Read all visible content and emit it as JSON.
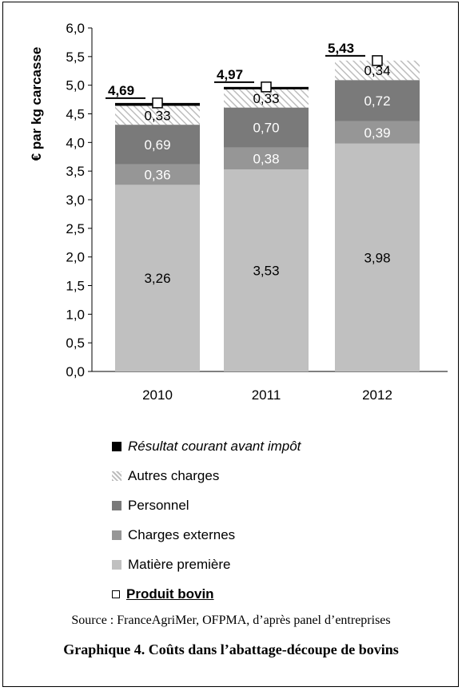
{
  "chart_data": {
    "type": "bar",
    "stacked": true,
    "ylabel": "€ par kg carcasse",
    "ylim": [
      0,
      6
    ],
    "yticks": [
      "0,0",
      "0,5",
      "1,0",
      "1,5",
      "2,0",
      "2,5",
      "3,0",
      "3,5",
      "4,0",
      "4,5",
      "5,0",
      "5,5",
      "6,0"
    ],
    "categories": [
      "2010",
      "2011",
      "2012"
    ],
    "series": [
      {
        "name": "Matière première",
        "values": [
          3.26,
          3.53,
          3.98
        ],
        "labels": [
          "3,26",
          "3,53",
          "3,98"
        ],
        "color": "#c0c0c0",
        "label_color": "#000000"
      },
      {
        "name": "Charges externes",
        "values": [
          0.36,
          0.38,
          0.39
        ],
        "labels": [
          "0,36",
          "0,38",
          "0,39"
        ],
        "color": "#969696",
        "label_color": "#ffffff"
      },
      {
        "name": "Personnel",
        "values": [
          0.69,
          0.7,
          0.72
        ],
        "labels": [
          "0,69",
          "0,70",
          "0,72"
        ],
        "color": "#7a7a7a",
        "label_color": "#ffffff"
      },
      {
        "name": "Autres charges",
        "values": [
          0.33,
          0.33,
          0.34
        ],
        "labels": [
          "0,33",
          "0,33",
          "0,34"
        ],
        "pattern": "hatched",
        "label_color": "#000000"
      }
    ],
    "resultat": {
      "name": "Résultat courant avant impôt",
      "values": [
        0.05,
        0.03,
        0.0
      ]
    },
    "produit": {
      "name": "Produit bovin",
      "values": [
        4.69,
        4.97,
        5.43
      ],
      "labels": [
        "4,69",
        "4,97",
        "5,43"
      ]
    },
    "legend_position": "bottom"
  },
  "legend": [
    {
      "label": "Résultat courant avant impôt",
      "style": "black",
      "italic": true,
      "bold": false,
      "underline": false
    },
    {
      "label": "Autres charges",
      "style": "hatched",
      "italic": false,
      "bold": false,
      "underline": false
    },
    {
      "label": "Personnel",
      "style": "#7a7a7a",
      "italic": false,
      "bold": false,
      "underline": false
    },
    {
      "label": "Charges externes",
      "style": "#969696",
      "italic": false,
      "bold": false,
      "underline": false
    },
    {
      "label": "Matière première",
      "style": "#c0c0c0",
      "italic": false,
      "bold": false,
      "underline": false
    },
    {
      "label": "Produit bovin",
      "style": "open-square",
      "italic": false,
      "bold": true,
      "underline": true
    }
  ],
  "source": "Source : FranceAgriMer, OFPMA, d’après panel d’entreprises",
  "caption": "Graphique 4. Coûts dans l’abattage-découpe de bovins"
}
